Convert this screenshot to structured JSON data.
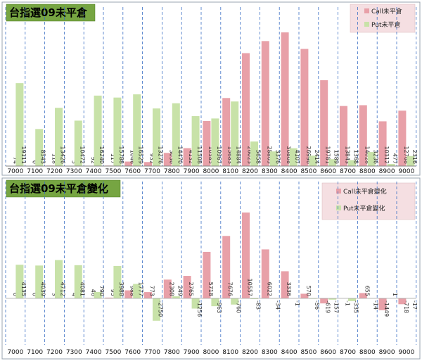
{
  "chart_data": [
    {
      "type": "bar",
      "title": "台指選09未平倉",
      "categories": [
        "7000",
        "7100",
        "7200",
        "7300",
        "7400",
        "7500",
        "7600",
        "7700",
        "7800",
        "7900",
        "8000",
        "8100",
        "8200",
        "8300",
        "8400",
        "8500",
        "8600",
        "8700",
        "8800",
        "8900",
        "9000"
      ],
      "series": [
        {
          "name": "Call未平倉",
          "color": "#e8a0a8",
          "values": [
            74,
            0,
            118,
            5,
            92,
            117,
            1046,
            932,
            3036,
            4132,
            10385,
            15683,
            26023,
            28805,
            30808,
            26996,
            19781,
            13843,
            14028,
            10312,
            12768
          ],
          "labels": [
            "74",
            "0",
            "118",
            "5",
            "92",
            "117",
            "1046",
            "932",
            "3036",
            "4132",
            "10385",
            "15683",
            "26023",
            "28805",
            "30808",
            "26996",
            "19781",
            "13843",
            "14028",
            "10312",
            "12768"
          ]
        },
        {
          "name": "Put未平倉",
          "color": "#c8e2a8",
          "values": [
            19111,
            8543,
            13426,
            10472,
            16240,
            15788,
            16529,
            13276,
            14470,
            11508,
            10967,
            14884,
            5658,
            3376,
            4107,
            2414,
            1589,
            1368,
            3236,
            477,
            2316
          ],
          "labels": [
            "19111",
            "8543",
            "13426",
            "10472",
            "16240",
            "15788",
            "16529",
            "13276",
            "14470",
            "11508",
            "10967",
            "14884",
            "5658",
            "3376",
            "4107",
            "2414",
            "1589",
            "1368",
            "3236",
            "477",
            "2316"
          ]
        }
      ],
      "ylim": [
        0,
        36000
      ]
    },
    {
      "type": "bar",
      "title": "台指選09未平倉變化",
      "categories": [
        "7000",
        "7100",
        "7200",
        "7300",
        "7400",
        "7500",
        "7600",
        "7700",
        "7800",
        "7900",
        "8000",
        "8100",
        "8200",
        "8300",
        "8400",
        "8500",
        "8600",
        "8700",
        "8800",
        "8900",
        "9000"
      ],
      "series": [
        {
          "name": "Call未平倉變化",
          "color": "#e8a0a8",
          "values": [
            0,
            0,
            3,
            4,
            46,
            95,
            988,
            773,
            2308,
            2765,
            5718,
            7676,
            10557,
            6022,
            3336,
            570,
            -619,
            -1,
            655,
            -1449,
            -718
          ],
          "labels": [
            "0",
            "0",
            "3",
            "4",
            "46",
            "95",
            "988",
            "773",
            "2308",
            "2765",
            "5718",
            "7676",
            "10557",
            "6022",
            "3336",
            "570",
            "-619",
            "-1",
            "655",
            "-1449",
            "-718"
          ]
        },
        {
          "name": "Put未平倉變化",
          "color": "#c8e2a8",
          "values": [
            4135,
            4039,
            4712,
            4081,
            790,
            3988,
            1777,
            -2750,
            249,
            -1256,
            -963,
            -760,
            -83,
            -34,
            -1,
            -56,
            -157,
            -335,
            -14,
            1,
            -17
          ],
          "labels": [
            "4135",
            "4039",
            "4712",
            "4081",
            "790",
            "3988",
            "1777",
            "-2750",
            "249",
            "-1256",
            "-963",
            "-760",
            "-83",
            "-34",
            "-1",
            "-56",
            "-157",
            "-335",
            "-14",
            "1",
            "-17"
          ]
        }
      ],
      "ylim": [
        -4500,
        13500
      ]
    }
  ]
}
